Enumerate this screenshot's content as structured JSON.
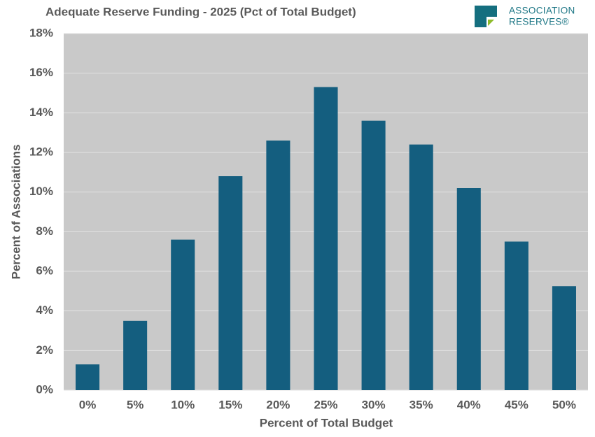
{
  "chart_data": {
    "type": "bar",
    "title": "Adequate Reserve Funding - 2025 (Pct of Total Budget)",
    "x_label": "Percent of Total Budget",
    "y_label": "Percent of Associations",
    "categories": [
      "0%",
      "5%",
      "10%",
      "15%",
      "20%",
      "25%",
      "30%",
      "35%",
      "40%",
      "45%",
      "50%"
    ],
    "values": [
      1.3,
      3.5,
      7.6,
      10.8,
      12.6,
      15.3,
      13.6,
      12.4,
      10.2,
      7.5,
      5.25
    ],
    "color": "#145e7f",
    "ylim": [
      0,
      18
    ],
    "yticks": [
      {
        "value": 0,
        "label": "0%"
      },
      {
        "value": 2,
        "label": "2%"
      },
      {
        "value": 4,
        "label": "4%"
      },
      {
        "value": 6,
        "label": "6%"
      },
      {
        "value": 8,
        "label": "8%"
      },
      {
        "value": 10,
        "label": "10%"
      },
      {
        "value": 12,
        "label": "12%"
      },
      {
        "value": 14,
        "label": "14%"
      },
      {
        "value": 16,
        "label": "16%"
      },
      {
        "value": 18,
        "label": "18%"
      }
    ],
    "grid": true,
    "logo": {
      "line1": "ASSOCIATION",
      "line2": "RESERVES®"
    }
  }
}
